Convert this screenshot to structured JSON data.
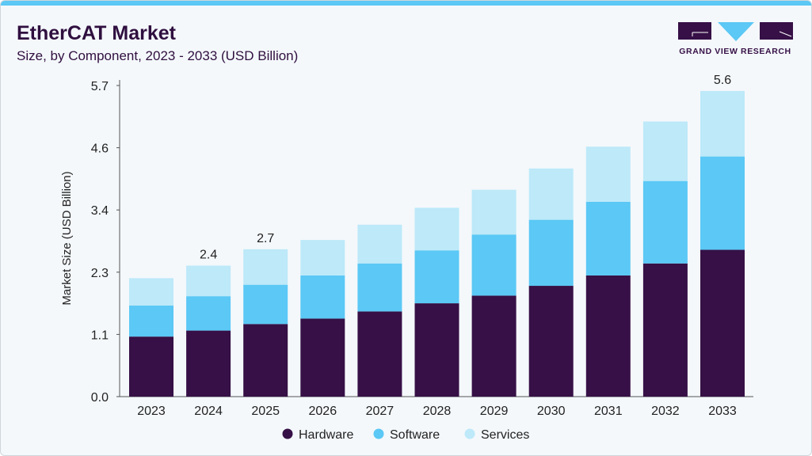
{
  "header": {
    "title": "EtherCAT Market",
    "subtitle": "Size, by Component, 2023 - 2033 (USD Billion)"
  },
  "logo": {
    "text": "GRAND VIEW RESEARCH"
  },
  "chart_data": {
    "type": "bar",
    "stacked": true,
    "title": "EtherCAT Market",
    "ylabel": "Market Size (USD Billion)",
    "xlabel": "",
    "ylim": [
      0,
      5.7
    ],
    "yticks": [
      "0.0",
      "1.1",
      "2.3",
      "3.4",
      "4.6",
      "5.7"
    ],
    "categories": [
      "2023",
      "2024",
      "2025",
      "2026",
      "2027",
      "2028",
      "2029",
      "2030",
      "2031",
      "2032",
      "2033"
    ],
    "series": [
      {
        "name": "Hardware",
        "color": "#361046",
        "values": [
          1.1,
          1.21,
          1.33,
          1.43,
          1.56,
          1.71,
          1.85,
          2.03,
          2.22,
          2.44,
          2.69
        ]
      },
      {
        "name": "Software",
        "color": "#5bc8f5",
        "values": [
          0.57,
          0.63,
          0.72,
          0.79,
          0.88,
          0.97,
          1.12,
          1.21,
          1.35,
          1.51,
          1.71
        ]
      },
      {
        "name": "Services",
        "color": "#bde9f9",
        "values": [
          0.5,
          0.56,
          0.65,
          0.65,
          0.71,
          0.78,
          0.82,
          0.94,
          1.01,
          1.09,
          1.2
        ]
      }
    ],
    "data_labels": [
      {
        "category": "2024",
        "text": "2.4"
      },
      {
        "category": "2025",
        "text": "2.7"
      },
      {
        "category": "2033",
        "text": "5.6"
      }
    ],
    "legend": "bottom",
    "grid": false
  }
}
